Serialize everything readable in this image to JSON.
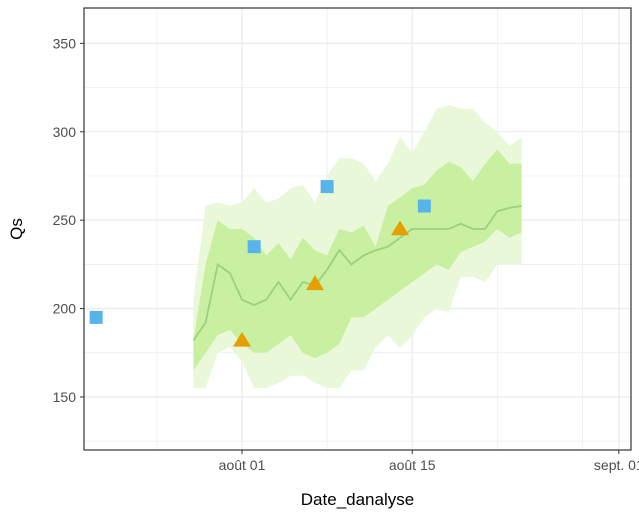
{
  "chart_data": {
    "type": "scatter",
    "title": "",
    "xlabel": "Date_danalyse",
    "ylabel": "Qs",
    "x_range": [
      "2024-07-19",
      "2024-09-02"
    ],
    "ylim": [
      120,
      370
    ],
    "x_ticks": [
      {
        "date": "2024-08-01",
        "label": "août 01"
      },
      {
        "date": "2024-08-15",
        "label": "août 15"
      },
      {
        "date": "2024-09-01",
        "label": "sept. 01"
      }
    ],
    "x_minor_ticks": [
      "2024-07-25",
      "2024-08-08",
      "2024-08-22",
      "2024-08-29"
    ],
    "y_ticks": [
      150,
      200,
      250,
      300,
      350
    ],
    "y_minor_ticks": [
      125,
      175,
      225,
      275,
      325
    ],
    "grid": true,
    "colors": {
      "outer_band": "#e8f8d8",
      "inner_band": "#c8f0a0",
      "median_line": "#9ccf7f",
      "squares": "#56b4e9",
      "triangles": "#e69f00",
      "panel_border": "#333333",
      "grid": "#ebebeb"
    },
    "outer_band": {
      "x": [
        "2024-07-28",
        "2024-07-29",
        "2024-07-30",
        "2024-07-31",
        "2024-08-01",
        "2024-08-02",
        "2024-08-03",
        "2024-08-04",
        "2024-08-05",
        "2024-08-06",
        "2024-08-07",
        "2024-08-08",
        "2024-08-09",
        "2024-08-10",
        "2024-08-11",
        "2024-08-12",
        "2024-08-13",
        "2024-08-14",
        "2024-08-15",
        "2024-08-16",
        "2024-08-17",
        "2024-08-18",
        "2024-08-19",
        "2024-08-20",
        "2024-08-21",
        "2024-08-22",
        "2024-08-23",
        "2024-08-24"
      ],
      "upper": [
        205,
        258,
        260,
        258,
        260,
        268,
        260,
        262,
        268,
        270,
        260,
        275,
        285,
        285,
        282,
        272,
        282,
        297,
        288,
        300,
        313,
        315,
        313,
        313,
        305,
        300,
        292,
        297
      ],
      "lower": [
        155,
        155,
        175,
        178,
        170,
        155,
        155,
        158,
        162,
        162,
        158,
        155,
        155,
        165,
        165,
        178,
        185,
        178,
        185,
        195,
        200,
        198,
        218,
        218,
        215,
        225,
        225,
        225
      ]
    },
    "inner_band": {
      "x": [
        "2024-07-28",
        "2024-07-29",
        "2024-07-30",
        "2024-07-31",
        "2024-08-01",
        "2024-08-02",
        "2024-08-03",
        "2024-08-04",
        "2024-08-05",
        "2024-08-06",
        "2024-08-07",
        "2024-08-08",
        "2024-08-09",
        "2024-08-10",
        "2024-08-11",
        "2024-08-12",
        "2024-08-13",
        "2024-08-14",
        "2024-08-15",
        "2024-08-16",
        "2024-08-17",
        "2024-08-18",
        "2024-08-19",
        "2024-08-20",
        "2024-08-21",
        "2024-08-22",
        "2024-08-23",
        "2024-08-24"
      ],
      "upper": [
        182,
        225,
        250,
        245,
        245,
        240,
        230,
        237,
        228,
        240,
        233,
        230,
        245,
        243,
        247,
        235,
        258,
        263,
        268,
        270,
        278,
        283,
        280,
        272,
        282,
        290,
        282,
        282
      ],
      "lower": [
        165,
        175,
        185,
        188,
        180,
        175,
        175,
        180,
        185,
        175,
        172,
        175,
        180,
        195,
        195,
        200,
        205,
        210,
        215,
        220,
        225,
        222,
        232,
        235,
        238,
        245,
        240,
        243
      ]
    },
    "median_line": {
      "x": [
        "2024-07-28",
        "2024-07-29",
        "2024-07-30",
        "2024-07-31",
        "2024-08-01",
        "2024-08-02",
        "2024-08-03",
        "2024-08-04",
        "2024-08-05",
        "2024-08-06",
        "2024-08-07",
        "2024-08-08",
        "2024-08-09",
        "2024-08-10",
        "2024-08-11",
        "2024-08-12",
        "2024-08-13",
        "2024-08-14",
        "2024-08-15",
        "2024-08-16",
        "2024-08-17",
        "2024-08-18",
        "2024-08-19",
        "2024-08-20",
        "2024-08-21",
        "2024-08-22",
        "2024-08-23",
        "2024-08-24"
      ],
      "y": [
        182,
        192,
        225,
        220,
        205,
        202,
        205,
        215,
        205,
        215,
        213,
        222,
        233,
        225,
        230,
        233,
        235,
        240,
        245,
        245,
        245,
        245,
        248,
        245,
        245,
        255,
        257,
        258
      ]
    },
    "series": [
      {
        "shape": "square",
        "x": [
          "2024-07-20",
          "2024-08-02",
          "2024-08-08",
          "2024-08-16"
        ],
        "y": [
          195,
          235,
          269,
          258
        ]
      },
      {
        "shape": "triangle",
        "x": [
          "2024-08-01",
          "2024-08-07",
          "2024-08-14"
        ],
        "y": [
          182,
          214,
          245
        ]
      }
    ]
  }
}
